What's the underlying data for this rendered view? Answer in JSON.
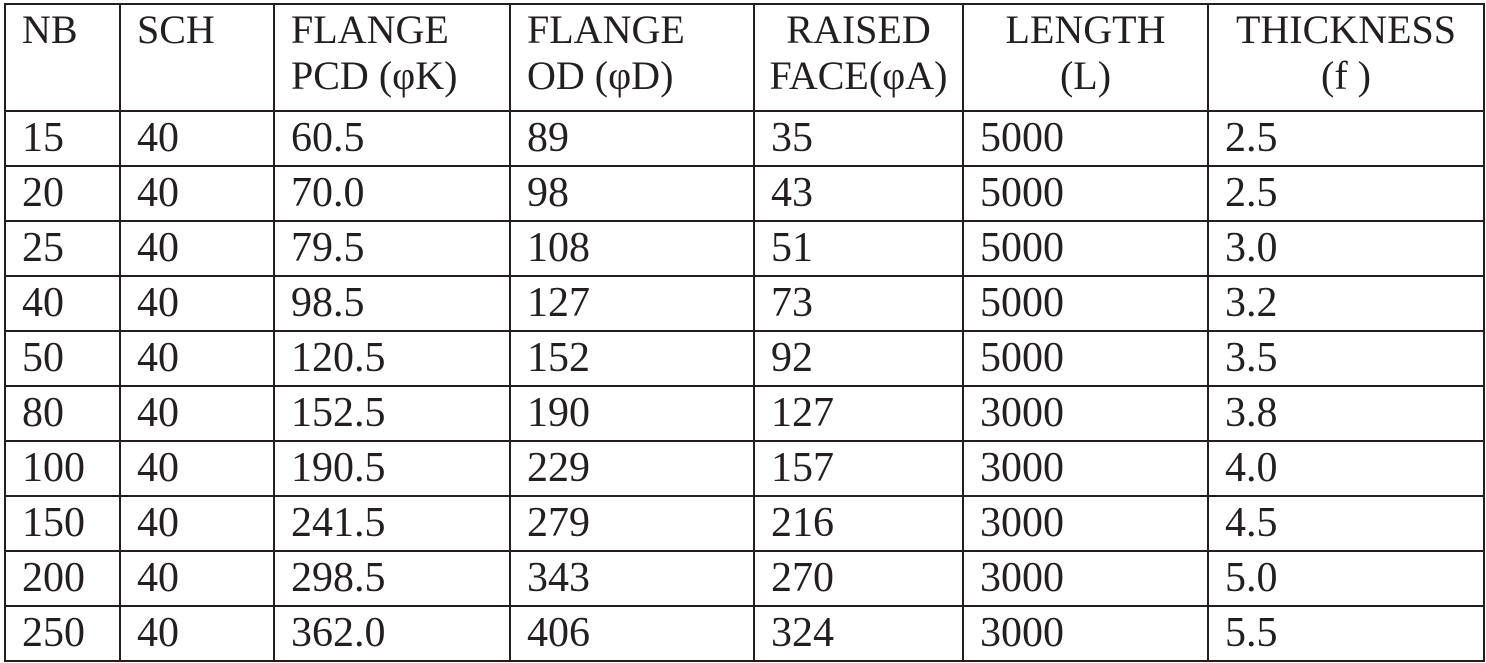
{
  "table": {
    "header": [
      [
        "NB"
      ],
      [
        "SCH"
      ],
      [
        "FLANGE",
        "PCD (φK)"
      ],
      [
        "FLANGE",
        "OD (φD)"
      ],
      [
        "RAISED",
        "FACE(φA)"
      ],
      [
        "LENGTH",
        "(L)"
      ],
      [
        "THICKNESS",
        "(f )"
      ]
    ],
    "rows": [
      [
        "15",
        "40",
        "60.5",
        "89",
        "35",
        "5000",
        "2.5"
      ],
      [
        "20",
        "40",
        "70.0",
        "98",
        "43",
        "5000",
        "2.5"
      ],
      [
        "25",
        "40",
        "79.5",
        "108",
        "51",
        "5000",
        "3.0"
      ],
      [
        "40",
        "40",
        "98.5",
        "127",
        "73",
        "5000",
        "3.2"
      ],
      [
        "50",
        "40",
        "120.5",
        "152",
        "92",
        "5000",
        "3.5"
      ],
      [
        "80",
        "40",
        "152.5",
        "190",
        "127",
        "3000",
        "3.8"
      ],
      [
        "100",
        "40",
        "190.5",
        "229",
        "157",
        "3000",
        "4.0"
      ],
      [
        "150",
        "40",
        "241.5",
        "279",
        "216",
        "3000",
        "4.5"
      ],
      [
        "200",
        "40",
        "298.5",
        "343",
        "270",
        "3000",
        "5.0"
      ],
      [
        "250",
        "40",
        "362.0",
        "406",
        "324",
        "3000",
        "5.5"
      ]
    ]
  }
}
